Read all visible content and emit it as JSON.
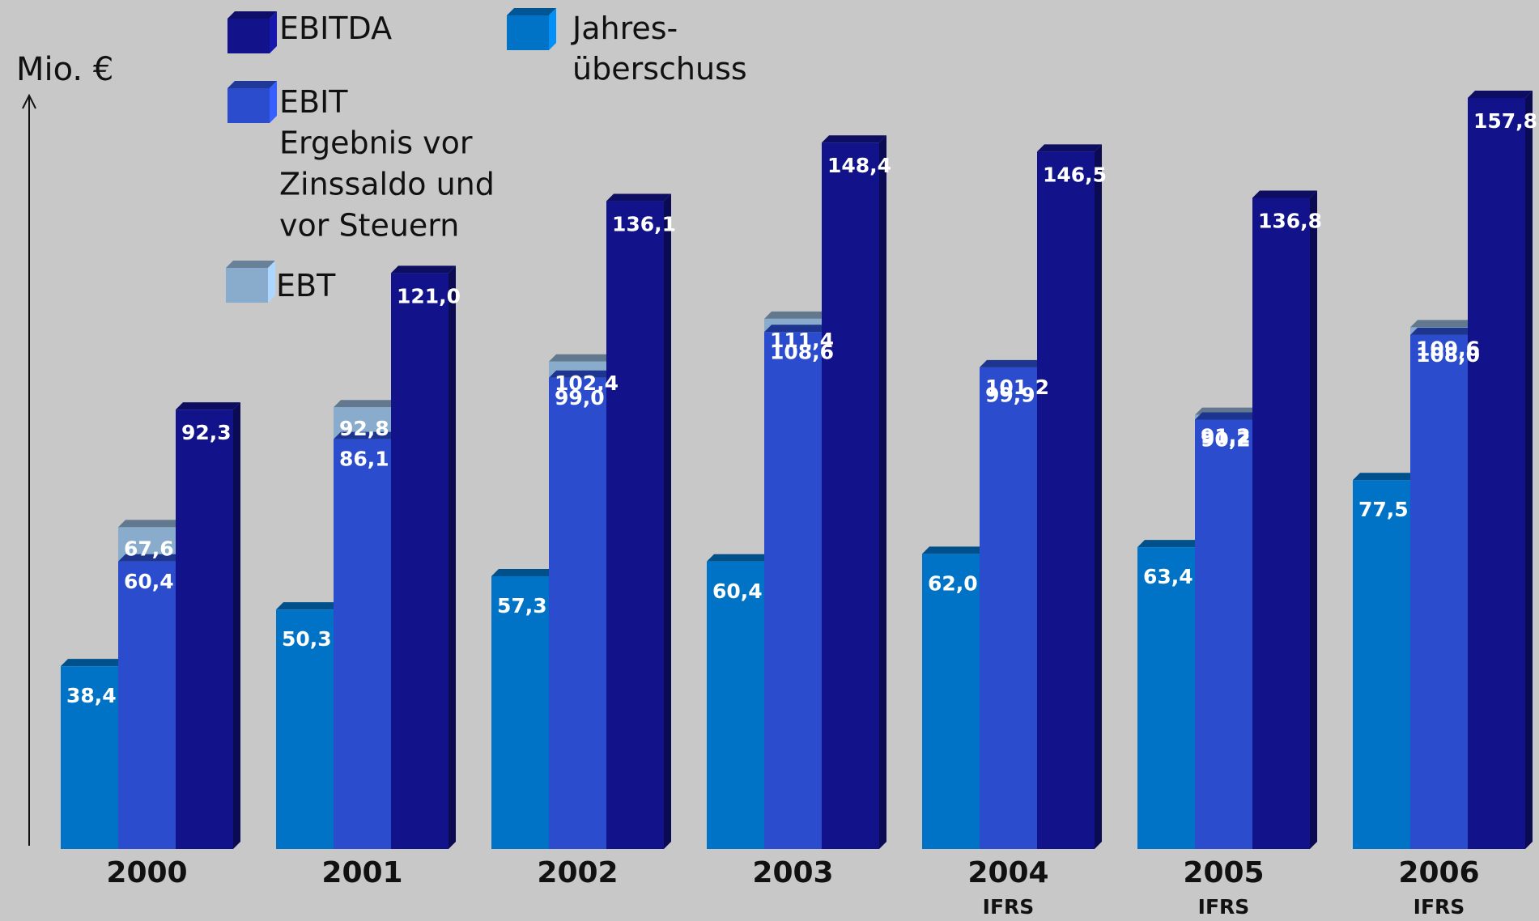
{
  "chart_data": {
    "type": "bar",
    "ylabel": "Mio. €",
    "categories": [
      "2000",
      "2001",
      "2002",
      "2003",
      "2004",
      "2005",
      "2006"
    ],
    "category_notes": [
      null,
      null,
      null,
      null,
      "IFRS",
      "IFRS",
      "IFRS"
    ],
    "ylim": [
      0,
      160
    ],
    "series": [
      {
        "name": "Jahres-\nüberschuss",
        "color": "#0073c6",
        "values": [
          38.4,
          50.3,
          57.3,
          60.4,
          62.0,
          63.4,
          77.5
        ],
        "value_labels": [
          "38,4",
          "50,3",
          "57,3",
          "60,4",
          "62,0",
          "63,4",
          "77,5"
        ]
      },
      {
        "name": "EBIT",
        "description": [
          "Ergebnis vor",
          "Zinssaldo und",
          "vor Steuern"
        ],
        "color": "#2b4ccc",
        "values": [
          60.4,
          86.1,
          99.0,
          108.6,
          101.2,
          90.2,
          108.0
        ],
        "value_labels": [
          "60,4",
          "86,1",
          "99,0",
          "108,6",
          "101,2",
          "90,2",
          "108,0"
        ]
      },
      {
        "name": "EBT",
        "color": "#8aaccc",
        "values": [
          67.6,
          92.8,
          102.4,
          111.4,
          99.9,
          91.2,
          109.6
        ],
        "value_labels": [
          "67,6",
          "92,8",
          "102,4",
          "111,4",
          "99,9",
          "91,2",
          "109,6"
        ]
      },
      {
        "name": "EBITDA",
        "color": "#12128a",
        "values": [
          92.3,
          121.0,
          136.1,
          148.4,
          146.5,
          136.8,
          157.8
        ],
        "value_labels": [
          "92,3",
          "121,0",
          "136,1",
          "148,4",
          "146,5",
          "136,8",
          "157,8"
        ]
      }
    ]
  }
}
